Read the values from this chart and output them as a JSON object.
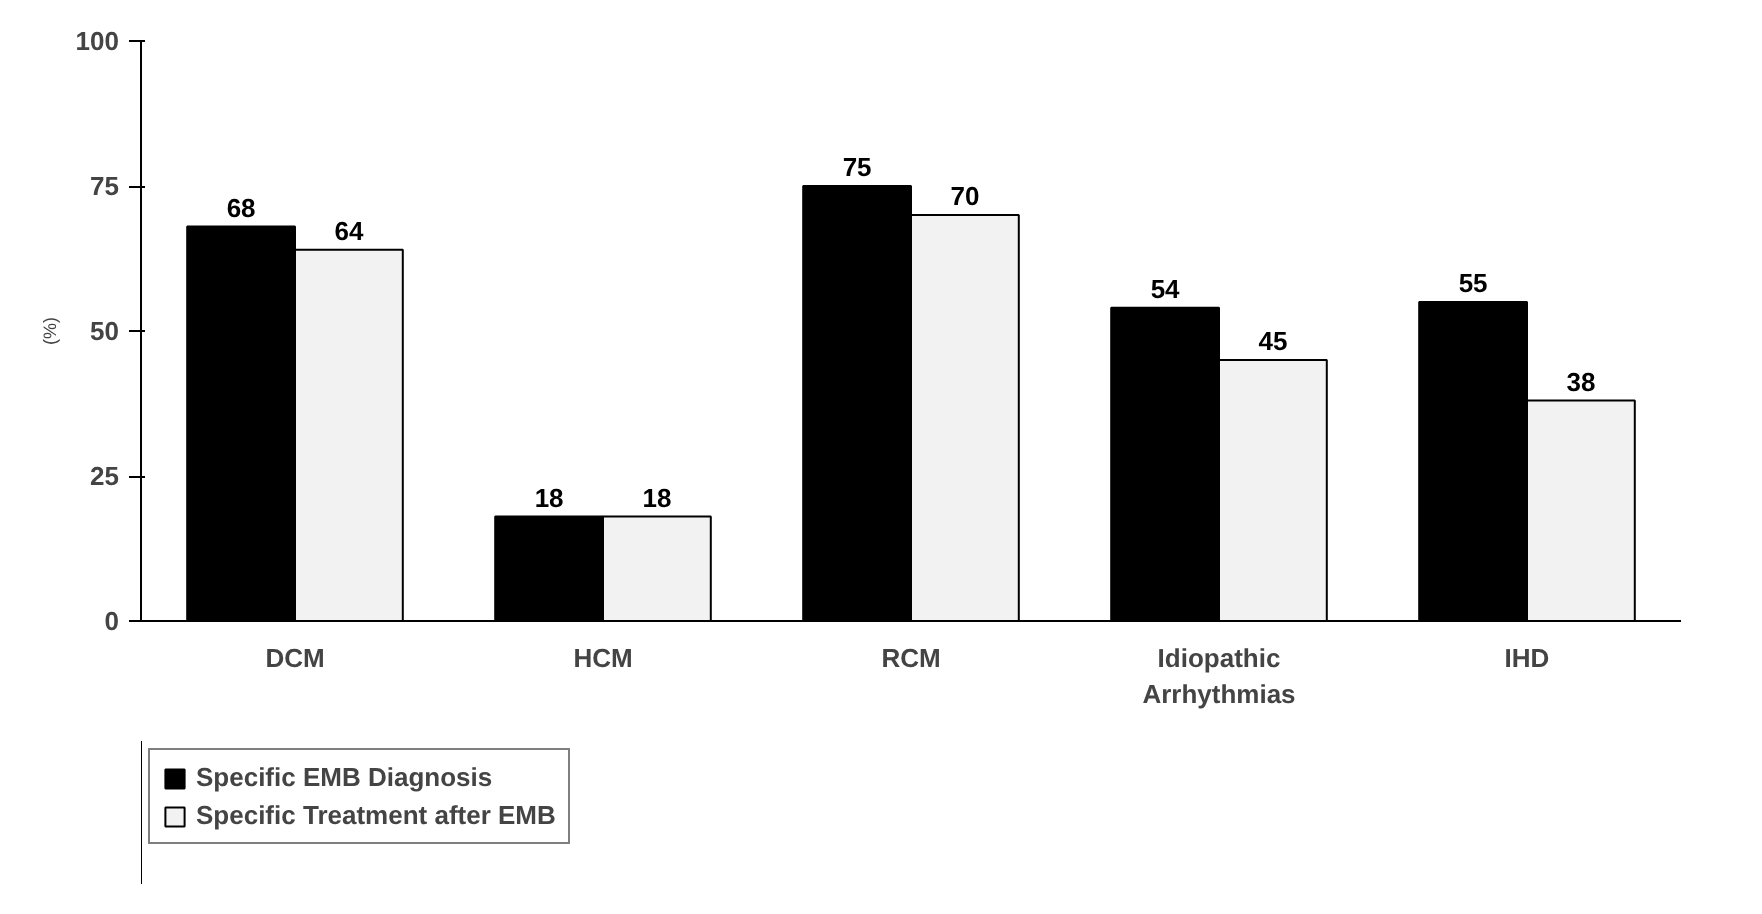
{
  "chart_data": {
    "type": "bar",
    "ylabel": "(%)",
    "categories": [
      "DCM",
      "HCM",
      "RCM",
      "Idiopathic\nArrhythmias",
      "IHD"
    ],
    "series": [
      {
        "name": "Specific EMB Diagnosis",
        "color": "#000000",
        "values": [
          68,
          18,
          75,
          54,
          55
        ]
      },
      {
        "name": "Specific Treatment after EMB",
        "color": "#f2f2f2",
        "values": [
          64,
          18,
          70,
          45,
          38
        ]
      }
    ],
    "ylim": [
      0,
      100
    ],
    "yticks": [
      0,
      25,
      50,
      75,
      100
    ],
    "grid": false,
    "data_labels": true,
    "legend": "bottom left"
  }
}
